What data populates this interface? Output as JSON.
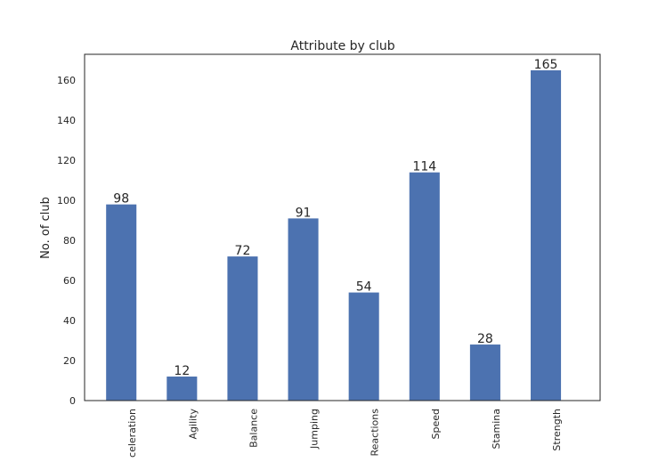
{
  "chart_data": {
    "type": "bar",
    "title": "Attribute by club",
    "xlabel": "",
    "ylabel": "No. of club",
    "categories": [
      "Acceleration",
      "Agility",
      "Balance",
      "Jumping",
      "Reactions",
      "Speed",
      "Stamina",
      "Strength"
    ],
    "values": [
      98,
      12,
      72,
      91,
      54,
      114,
      28,
      165
    ],
    "ylim": [
      0,
      173
    ],
    "yticks": [
      0,
      20,
      40,
      60,
      80,
      100,
      120,
      140,
      160
    ],
    "bar_color": "#4c72b0",
    "grid": false,
    "legend": "none"
  }
}
